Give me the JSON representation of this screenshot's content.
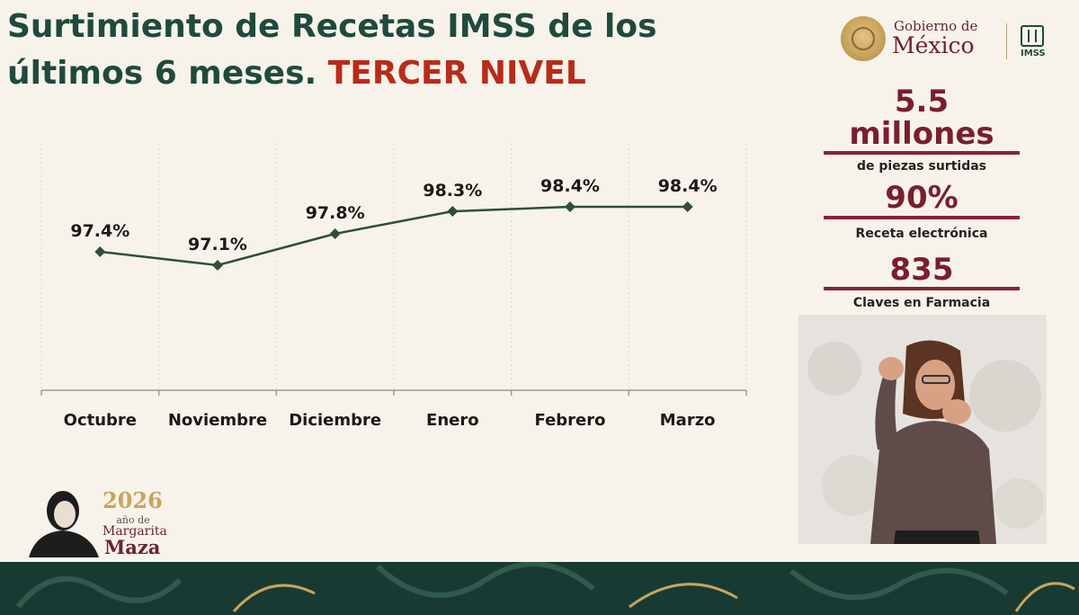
{
  "header": {
    "title_main": "Surtimiento de Recetas IMSS de los últimos 6 meses.",
    "title_accent": "TERCER NIVEL"
  },
  "logos": {
    "gob_small": "Gobierno de",
    "gob_big": "México",
    "imss": "IMSS"
  },
  "stats": [
    {
      "value": "5.5",
      "value2": "millones",
      "label": "de piezas surtidas"
    },
    {
      "value": "90%",
      "label": "Receta electrónica"
    },
    {
      "value": "835",
      "label": "Claves en Farmacia"
    }
  ],
  "badge": {
    "year": "2026",
    "sub": "año de",
    "name1": "Margarita",
    "name2": "Maza"
  },
  "colors": {
    "title": "#1f4a3d",
    "accent": "#b72c1a",
    "line": "#2f4d40",
    "stat": "#7a1e2e",
    "stat_line": "#8a2236"
  },
  "chart_data": {
    "type": "line",
    "categories": [
      "Octubre",
      "Noviembre",
      "Diciembre",
      "Enero",
      "Febrero",
      "Marzo"
    ],
    "values": [
      97.4,
      97.1,
      97.8,
      98.3,
      98.4,
      98.4
    ],
    "data_labels": [
      "97.4%",
      "97.1%",
      "97.8%",
      "98.3%",
      "98.4%",
      "98.4%"
    ],
    "title": "",
    "xlabel": "",
    "ylabel": "",
    "grid": "vertical",
    "legend": "none"
  }
}
